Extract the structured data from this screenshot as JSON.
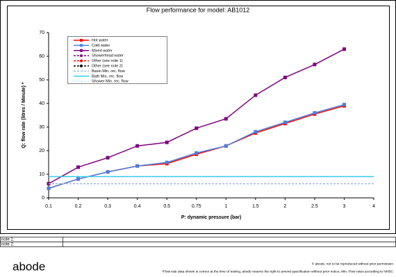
{
  "chart_data": {
    "type": "line",
    "title": "Flow performance for model: AB1012",
    "x_label": "P: dynamic pressure (bar)",
    "y_label": "Q: flow rate (litres / Minute) *",
    "categories": [
      "0.1",
      "0.2",
      "0.3",
      "0.4",
      "0.5",
      "0.75",
      "1",
      "1.5",
      "2",
      "2.5",
      "3",
      "4"
    ],
    "ylim": [
      0,
      70
    ],
    "yticks": [
      0,
      10,
      20,
      30,
      40,
      50,
      60,
      70
    ],
    "grid": false,
    "legend": "upper left",
    "series": [
      {
        "name": "Hot water",
        "color": "#ff0000",
        "style": "solid",
        "marker": "square",
        "values": [
          4,
          8,
          11,
          13.5,
          14.5,
          18.5,
          22,
          27.5,
          31.5,
          35.5,
          39,
          null
        ]
      },
      {
        "name": "Cold water",
        "color": "#4a7fe0",
        "style": "solid",
        "marker": "square",
        "values": [
          4,
          8,
          11,
          13.5,
          15,
          19,
          22,
          28,
          32,
          36,
          39.5,
          null
        ]
      },
      {
        "name": "Mixed water",
        "color": "#800080",
        "style": "solid",
        "marker": "square",
        "values": [
          6,
          13,
          17,
          22,
          23.5,
          29.5,
          33.5,
          43.5,
          51,
          56.5,
          63,
          null
        ]
      },
      {
        "name": "Showerhead water",
        "color": "#800080",
        "style": "dashed",
        "marker": "circle",
        "values": [
          null,
          null,
          null,
          null,
          null,
          null,
          null,
          null,
          null,
          null,
          null,
          null
        ]
      },
      {
        "name": "Other (see note 1)",
        "color": "#ff0000",
        "style": "dashed",
        "marker": "circle",
        "values": [
          null,
          null,
          null,
          null,
          null,
          null,
          null,
          null,
          null,
          null,
          null,
          null
        ]
      },
      {
        "name": "Other (see note 2)",
        "color": "#000000",
        "style": "dashed",
        "marker": "circle",
        "values": [
          null,
          null,
          null,
          null,
          null,
          null,
          null,
          null,
          null,
          null,
          null,
          null
        ]
      },
      {
        "name": "Basin Min. rec. flow",
        "color": "#9ab8d8",
        "style": "dashed",
        "marker": null,
        "values": [
          6,
          6,
          6,
          6,
          6,
          6,
          6,
          6,
          6,
          6,
          6,
          6
        ]
      },
      {
        "name": "Bath Min. rec. flow",
        "color": "#33ccee",
        "style": "solid",
        "marker": null,
        "values": [
          9,
          9,
          9,
          9,
          9,
          9,
          9,
          9,
          9,
          9,
          9,
          9
        ]
      },
      {
        "name": "Shower Min. rec. flow",
        "color": "#bff0ff",
        "style": "dashed",
        "marker": null,
        "values": [
          null,
          null,
          null,
          null,
          null,
          null,
          null,
          null,
          null,
          null,
          null,
          null
        ]
      }
    ]
  },
  "notes": [
    {
      "label": "note 1:"
    },
    {
      "label": "note 2:"
    }
  ],
  "footer": {
    "logo": "abode",
    "line1": "© abode, not to be reproduced without prior permission",
    "line2": "*Flow rate data shown is correct at the time of testing, abode reserve the right to amend specification without prior notice, Min. Flow rates according to NHBC"
  }
}
